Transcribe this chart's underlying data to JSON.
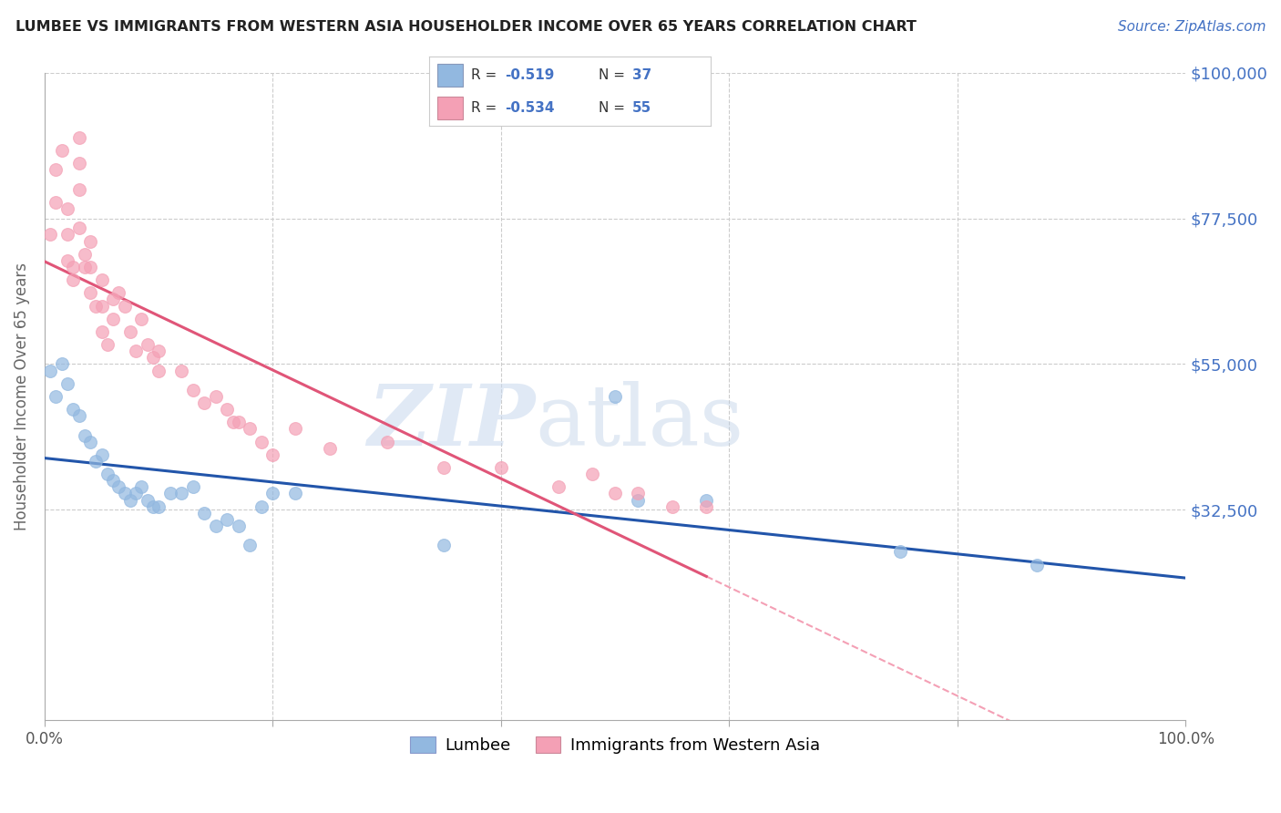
{
  "title": "LUMBEE VS IMMIGRANTS FROM WESTERN ASIA HOUSEHOLDER INCOME OVER 65 YEARS CORRELATION CHART",
  "source": "Source: ZipAtlas.com",
  "ylabel": "Householder Income Over 65 years",
  "xlim": [
    0.0,
    1.0
  ],
  "ylim": [
    0,
    100000
  ],
  "title_color": "#222222",
  "source_color": "#4472c4",
  "right_tick_color": "#4472c4",
  "blue_color": "#92b8e0",
  "pink_color": "#f4a0b5",
  "blue_line_color": "#2255aa",
  "pink_line_color": "#e05578",
  "pink_line_dashed_color": "#f4a0b5",
  "legend_blue_r": "-0.519",
  "legend_blue_n": "37",
  "legend_pink_r": "-0.534",
  "legend_pink_n": "55",
  "lumbee_x": [
    0.005,
    0.01,
    0.015,
    0.02,
    0.025,
    0.03,
    0.035,
    0.04,
    0.045,
    0.05,
    0.055,
    0.06,
    0.065,
    0.07,
    0.075,
    0.08,
    0.085,
    0.09,
    0.095,
    0.1,
    0.11,
    0.12,
    0.13,
    0.14,
    0.15,
    0.16,
    0.17,
    0.18,
    0.19,
    0.2,
    0.22,
    0.35,
    0.5,
    0.52,
    0.58,
    0.75,
    0.87
  ],
  "lumbee_y": [
    54000,
    50000,
    55000,
    52000,
    48000,
    47000,
    44000,
    43000,
    40000,
    41000,
    38000,
    37000,
    36000,
    35000,
    34000,
    35000,
    36000,
    34000,
    33000,
    33000,
    35000,
    35000,
    36000,
    32000,
    30000,
    31000,
    30000,
    27000,
    33000,
    35000,
    35000,
    27000,
    50000,
    34000,
    34000,
    26000,
    24000
  ],
  "western_asia_x": [
    0.005,
    0.01,
    0.01,
    0.015,
    0.02,
    0.02,
    0.02,
    0.025,
    0.025,
    0.03,
    0.03,
    0.03,
    0.03,
    0.035,
    0.035,
    0.04,
    0.04,
    0.04,
    0.045,
    0.05,
    0.05,
    0.05,
    0.055,
    0.06,
    0.06,
    0.065,
    0.07,
    0.075,
    0.08,
    0.085,
    0.09,
    0.095,
    0.1,
    0.1,
    0.12,
    0.13,
    0.14,
    0.15,
    0.16,
    0.165,
    0.17,
    0.18,
    0.19,
    0.2,
    0.22,
    0.25,
    0.3,
    0.35,
    0.4,
    0.45,
    0.48,
    0.5,
    0.52,
    0.55,
    0.58
  ],
  "western_asia_y": [
    75000,
    80000,
    85000,
    88000,
    79000,
    75000,
    71000,
    70000,
    68000,
    90000,
    86000,
    82000,
    76000,
    72000,
    70000,
    74000,
    70000,
    66000,
    64000,
    68000,
    64000,
    60000,
    58000,
    65000,
    62000,
    66000,
    64000,
    60000,
    57000,
    62000,
    58000,
    56000,
    57000,
    54000,
    54000,
    51000,
    49000,
    50000,
    48000,
    46000,
    46000,
    45000,
    43000,
    41000,
    45000,
    42000,
    43000,
    39000,
    39000,
    36000,
    38000,
    35000,
    35000,
    33000,
    33000
  ]
}
